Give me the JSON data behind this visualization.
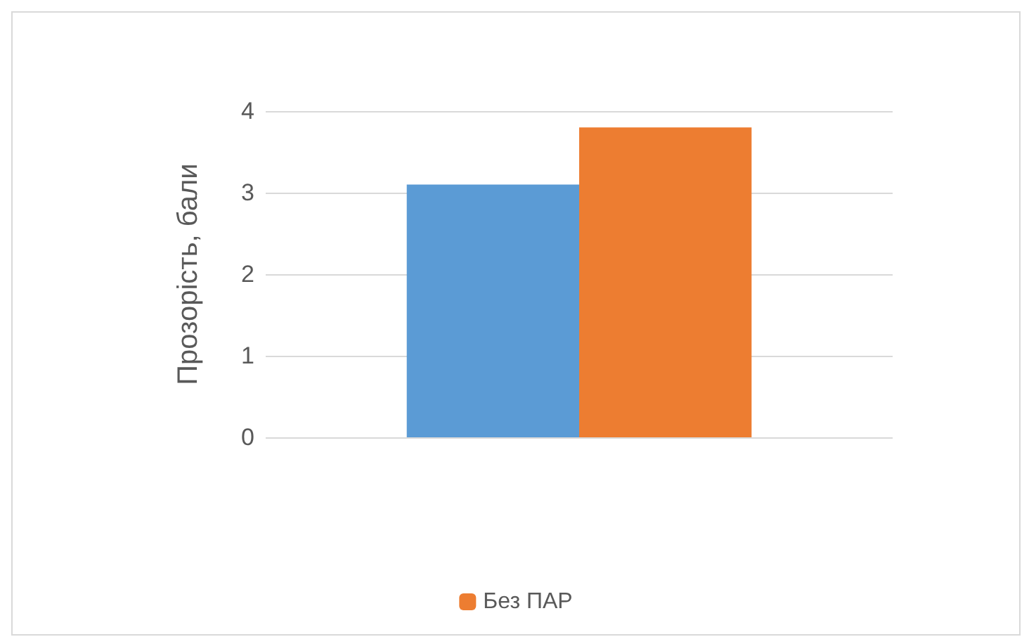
{
  "chart_data": {
    "type": "bar",
    "ylabel": "Прозорість, бали",
    "categories": [
      null
    ],
    "series": [
      {
        "color": "#5b9bd5",
        "values": [
          3.1
        ]
      },
      {
        "name": "Без ПАР",
        "color": "#ed7d31",
        "values": [
          3.8
        ]
      }
    ],
    "ylim": [
      0,
      4
    ],
    "yticks": [
      0,
      1,
      2,
      3,
      4
    ],
    "grid": "y",
    "legend": "bottom"
  }
}
